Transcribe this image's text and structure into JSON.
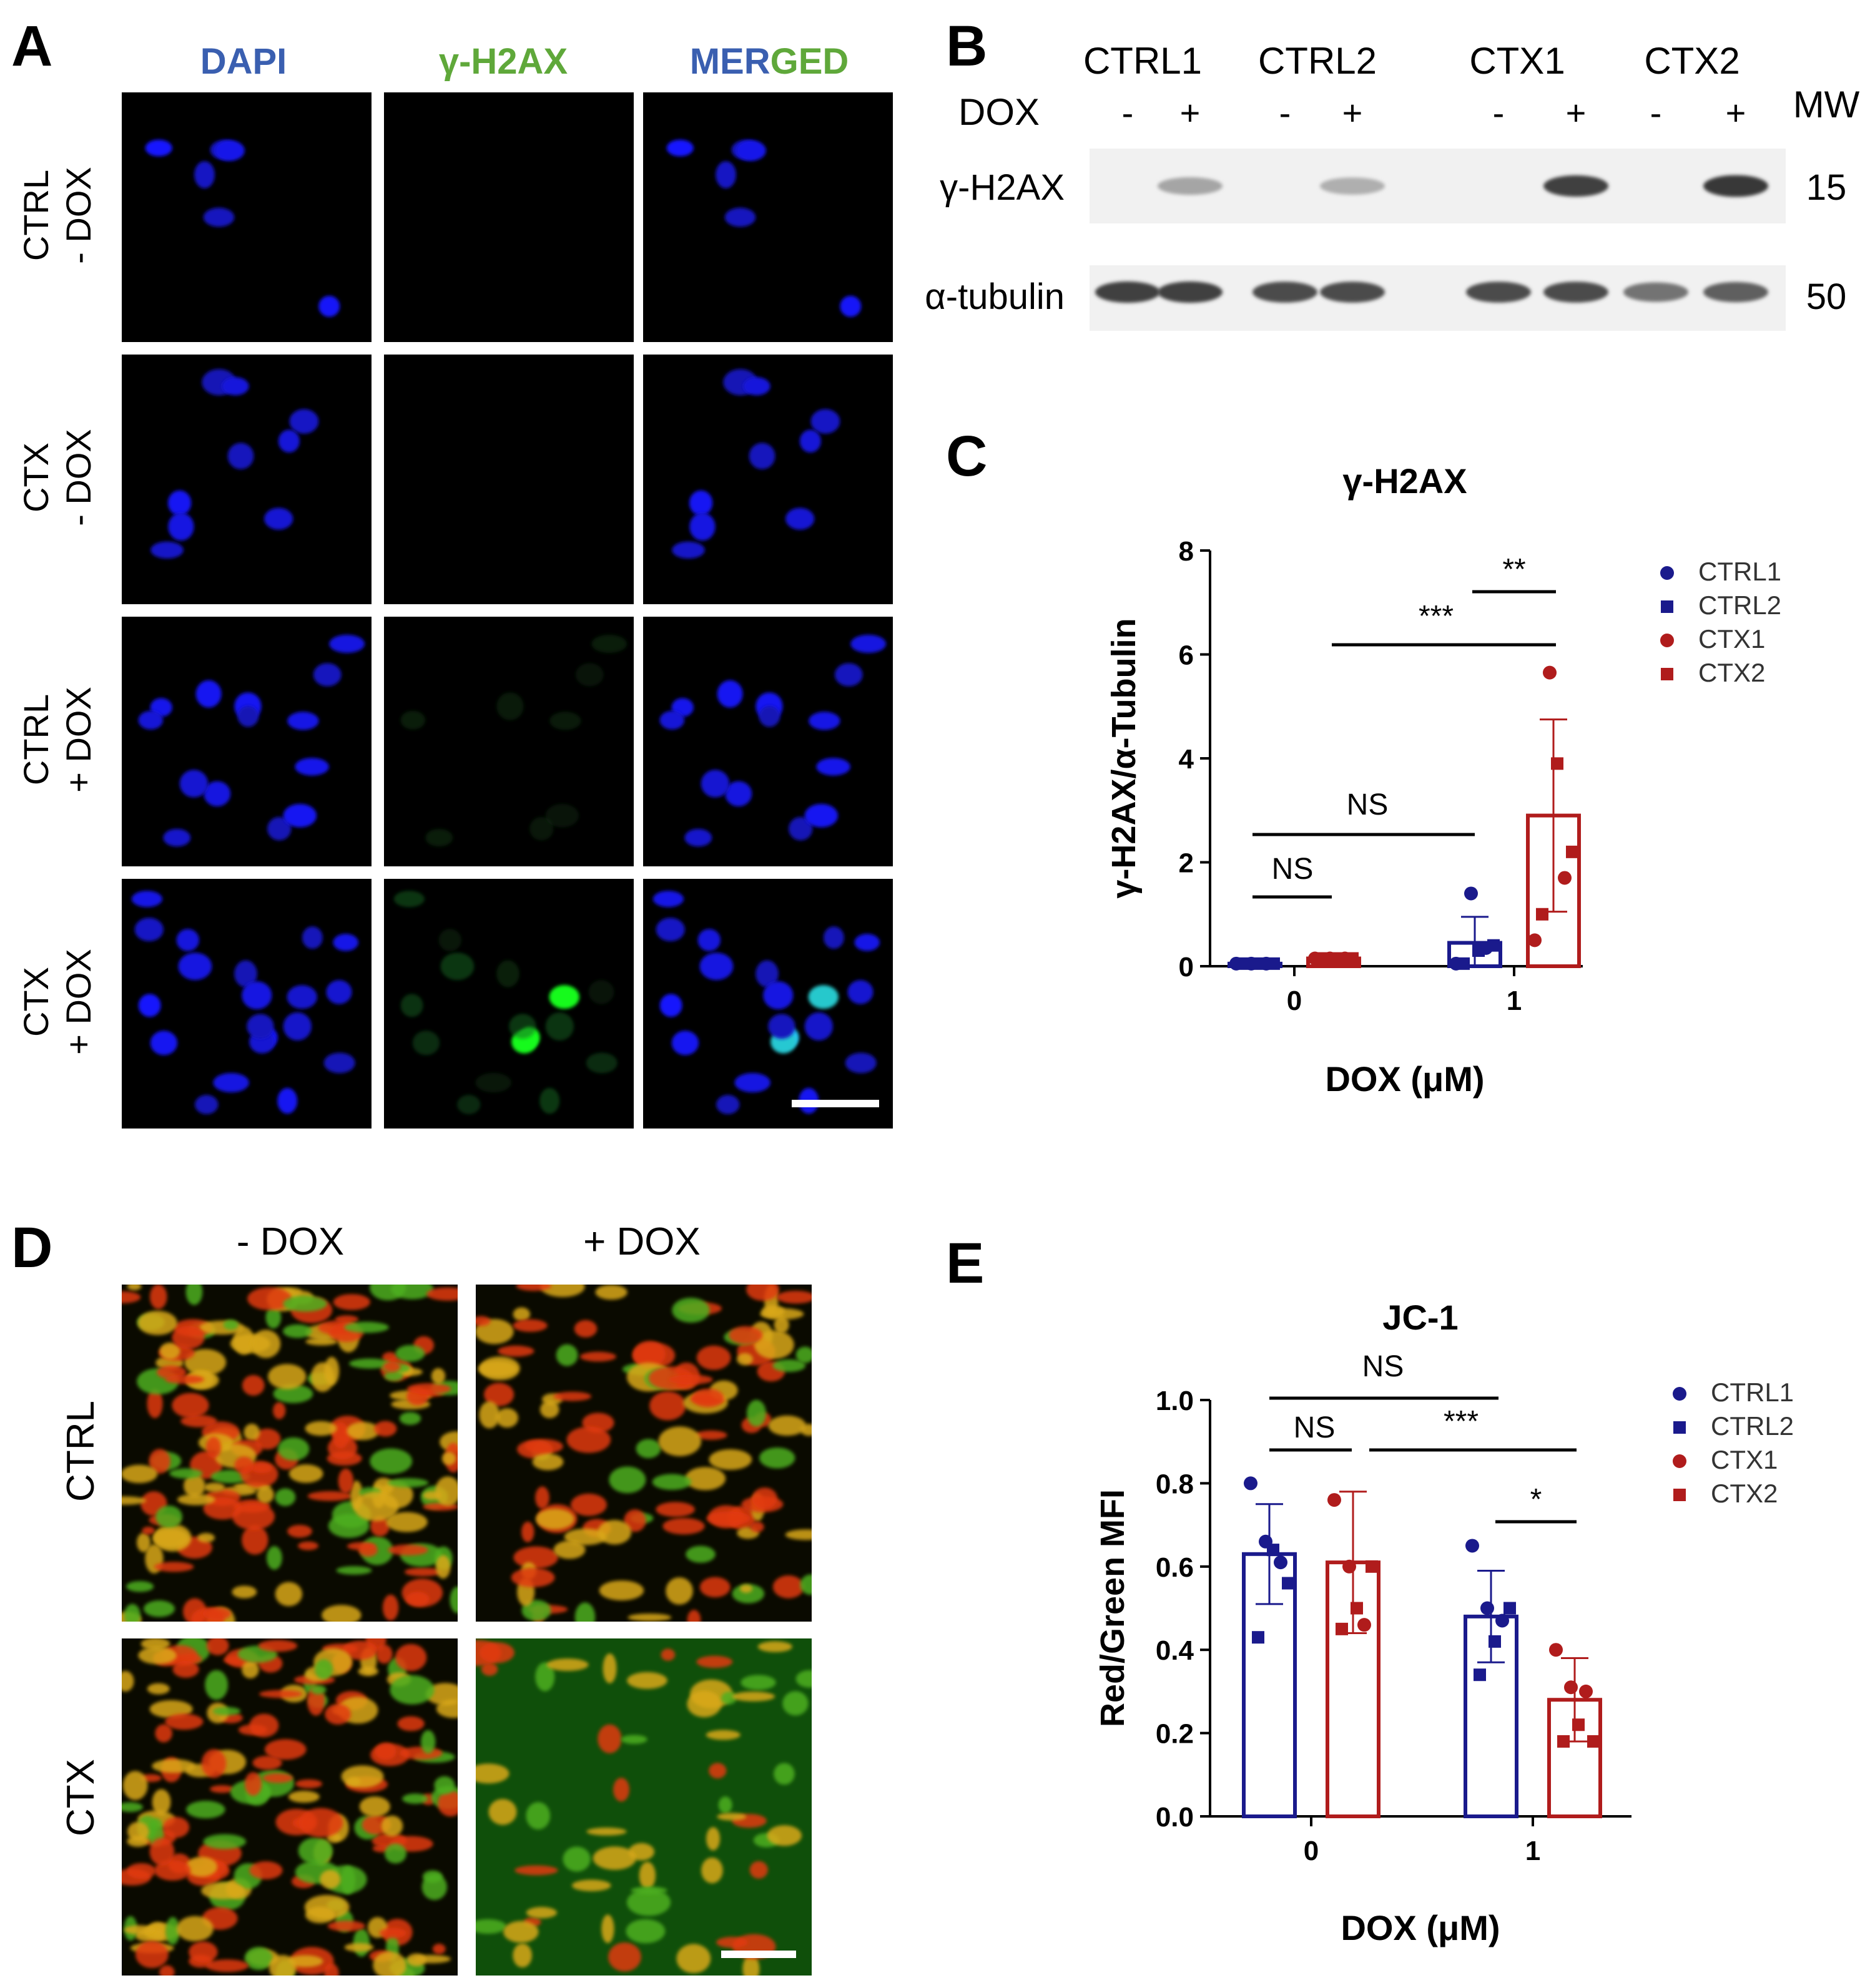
{
  "panel_letters": {
    "a": "A",
    "b": "B",
    "c": "C",
    "d": "D",
    "e": "E"
  },
  "panel_a": {
    "columns": [
      {
        "label": "DAPI",
        "color": "#3a5fb0"
      },
      {
        "label": "γ-H2AX",
        "color": "#5fa83a"
      },
      {
        "label_part1": "MER",
        "label_part2": "GED",
        "color1": "#3a5fb0",
        "color2": "#5fa83a"
      }
    ],
    "rows": [
      {
        "line1": "CTRL",
        "line2": "- DOX"
      },
      {
        "line1": "CTX",
        "line2": "- DOX"
      },
      {
        "line1": "CTRL",
        "line2": "+ DOX"
      },
      {
        "line1": "CTX",
        "line2": "+ DOX"
      }
    ]
  },
  "panel_b": {
    "groups": [
      "CTRL1",
      "CTRL2",
      "CTX1",
      "CTX2"
    ],
    "dox_label": "DOX",
    "dox_signs": [
      "-",
      "+",
      "-",
      "+",
      "-",
      "+",
      "-",
      "+"
    ],
    "mw_label": "MW",
    "bands": [
      {
        "protein": "γ-H2AX",
        "mw": "15",
        "intensity": [
          0.0,
          0.35,
          0.0,
          0.3,
          0.0,
          0.85,
          0.0,
          0.9
        ]
      },
      {
        "protein": "α-tubulin",
        "mw": "50",
        "intensity": [
          0.85,
          0.85,
          0.8,
          0.8,
          0.8,
          0.8,
          0.6,
          0.7
        ]
      }
    ]
  },
  "panel_d": {
    "columns": [
      "- DOX",
      "+ DOX"
    ],
    "rows": [
      "CTRL",
      "CTX"
    ]
  },
  "chart_data": [
    {
      "type": "bar",
      "panel": "C",
      "title": "γ-H2AX",
      "xlabel": "DOX (μM)",
      "ylabel": "γ-H2AX/α-Tubulin",
      "categories": [
        "0",
        "1"
      ],
      "ylim": [
        0,
        8
      ],
      "yticks": [
        "0",
        "2",
        "4",
        "6",
        "8"
      ],
      "series": [
        {
          "name": "CTRL",
          "color": "#1a1a8c",
          "values": [
            0.05,
            0.45
          ],
          "error": [
            0.03,
            0.5
          ],
          "points": [
            [
              0.05,
              0.05,
              0.05,
              0.05,
              0.05,
              0.05
            ],
            [
              0.05,
              1.4,
              0.35,
              0.05,
              0.3,
              0.4
            ]
          ]
        },
        {
          "name": "CTX",
          "color": "#b01c1c",
          "values": [
            0.15,
            2.9
          ],
          "error": [
            0.04,
            1.85
          ],
          "points": [
            [
              0.15,
              0.15,
              0.15,
              0.15,
              0.15,
              0.15
            ],
            [
              0.5,
              5.65,
              1.7,
              1.0,
              3.9,
              2.2
            ]
          ]
        }
      ],
      "legend": [
        {
          "label": "CTRL1",
          "marker": "circle",
          "color": "#1a1a8c"
        },
        {
          "label": "CTRL2",
          "marker": "square",
          "color": "#1a1a8c"
        },
        {
          "label": "CTX1",
          "marker": "circle",
          "color": "#b01c1c"
        },
        {
          "label": "CTX2",
          "marker": "square",
          "color": "#b01c1c"
        }
      ],
      "annotations": [
        "**",
        "***",
        "NS",
        "NS"
      ]
    },
    {
      "type": "bar",
      "panel": "E",
      "title": "JC-1",
      "xlabel": "DOX (μM)",
      "ylabel": "Red/Green MFI",
      "categories": [
        "0",
        "1"
      ],
      "ylim": [
        0,
        1.0
      ],
      "yticks": [
        "0.0",
        "0.2",
        "0.4",
        "0.6",
        "0.8",
        "1.0"
      ],
      "series": [
        {
          "name": "CTRL",
          "color": "#1a1a8c",
          "values": [
            0.63,
            0.48
          ],
          "error": [
            0.12,
            0.11
          ],
          "points": [
            [
              0.8,
              0.66,
              0.61,
              0.43,
              0.64,
              0.56
            ],
            [
              0.65,
              0.5,
              0.47,
              0.34,
              0.42,
              0.5
            ]
          ]
        },
        {
          "name": "CTX",
          "color": "#b01c1c",
          "values": [
            0.61,
            0.28
          ],
          "error": [
            0.17,
            0.1
          ],
          "points": [
            [
              0.76,
              0.6,
              0.46,
              0.45,
              0.5,
              0.6
            ],
            [
              0.4,
              0.31,
              0.3,
              0.18,
              0.22,
              0.18
            ]
          ]
        }
      ],
      "legend": [
        {
          "label": "CTRL1",
          "marker": "circle",
          "color": "#1a1a8c"
        },
        {
          "label": "CTRL2",
          "marker": "square",
          "color": "#1a1a8c"
        },
        {
          "label": "CTX1",
          "marker": "circle",
          "color": "#b01c1c"
        },
        {
          "label": "CTX2",
          "marker": "square",
          "color": "#b01c1c"
        }
      ],
      "annotations": [
        "NS",
        "NS",
        "***",
        "*"
      ]
    }
  ]
}
